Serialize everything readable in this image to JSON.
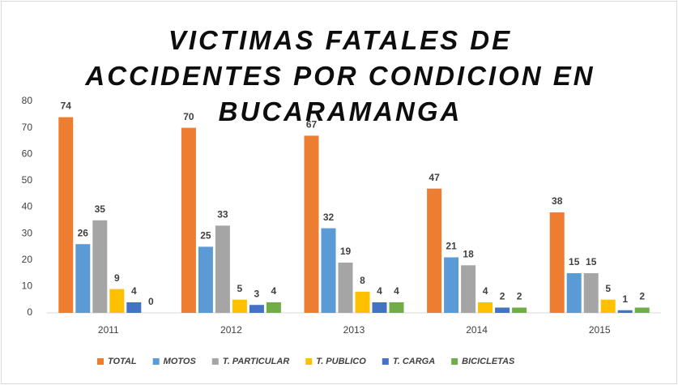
{
  "chart_data": {
    "type": "bar",
    "title": "VICTIMAS FATALES DE ACCIDENTES POR CONDICION EN BUCARAMANGA",
    "categories": [
      "2011",
      "2012",
      "2013",
      "2014",
      "2015"
    ],
    "series": [
      {
        "name": "TOTAL",
        "color": "#ED7D31",
        "values": [
          74,
          70,
          67,
          47,
          38
        ]
      },
      {
        "name": "MOTOS",
        "color": "#5B9BD5",
        "values": [
          26,
          25,
          32,
          21,
          15
        ]
      },
      {
        "name": "T. PARTICULAR",
        "color": "#A5A5A5",
        "values": [
          35,
          33,
          19,
          18,
          15
        ]
      },
      {
        "name": "T. PUBLICO",
        "color": "#FFC000",
        "values": [
          9,
          5,
          8,
          4,
          5
        ]
      },
      {
        "name": "T. CARGA",
        "color": "#4472C4",
        "values": [
          4,
          3,
          4,
          2,
          1
        ]
      },
      {
        "name": "BICICLETAS",
        "color": "#70AD47",
        "values": [
          0,
          4,
          4,
          2,
          2
        ]
      }
    ],
    "ylim": [
      0,
      80
    ],
    "yticks": [
      0,
      10,
      20,
      30,
      40,
      50,
      60,
      70,
      80
    ],
    "grid": false,
    "legend": "bottom"
  }
}
